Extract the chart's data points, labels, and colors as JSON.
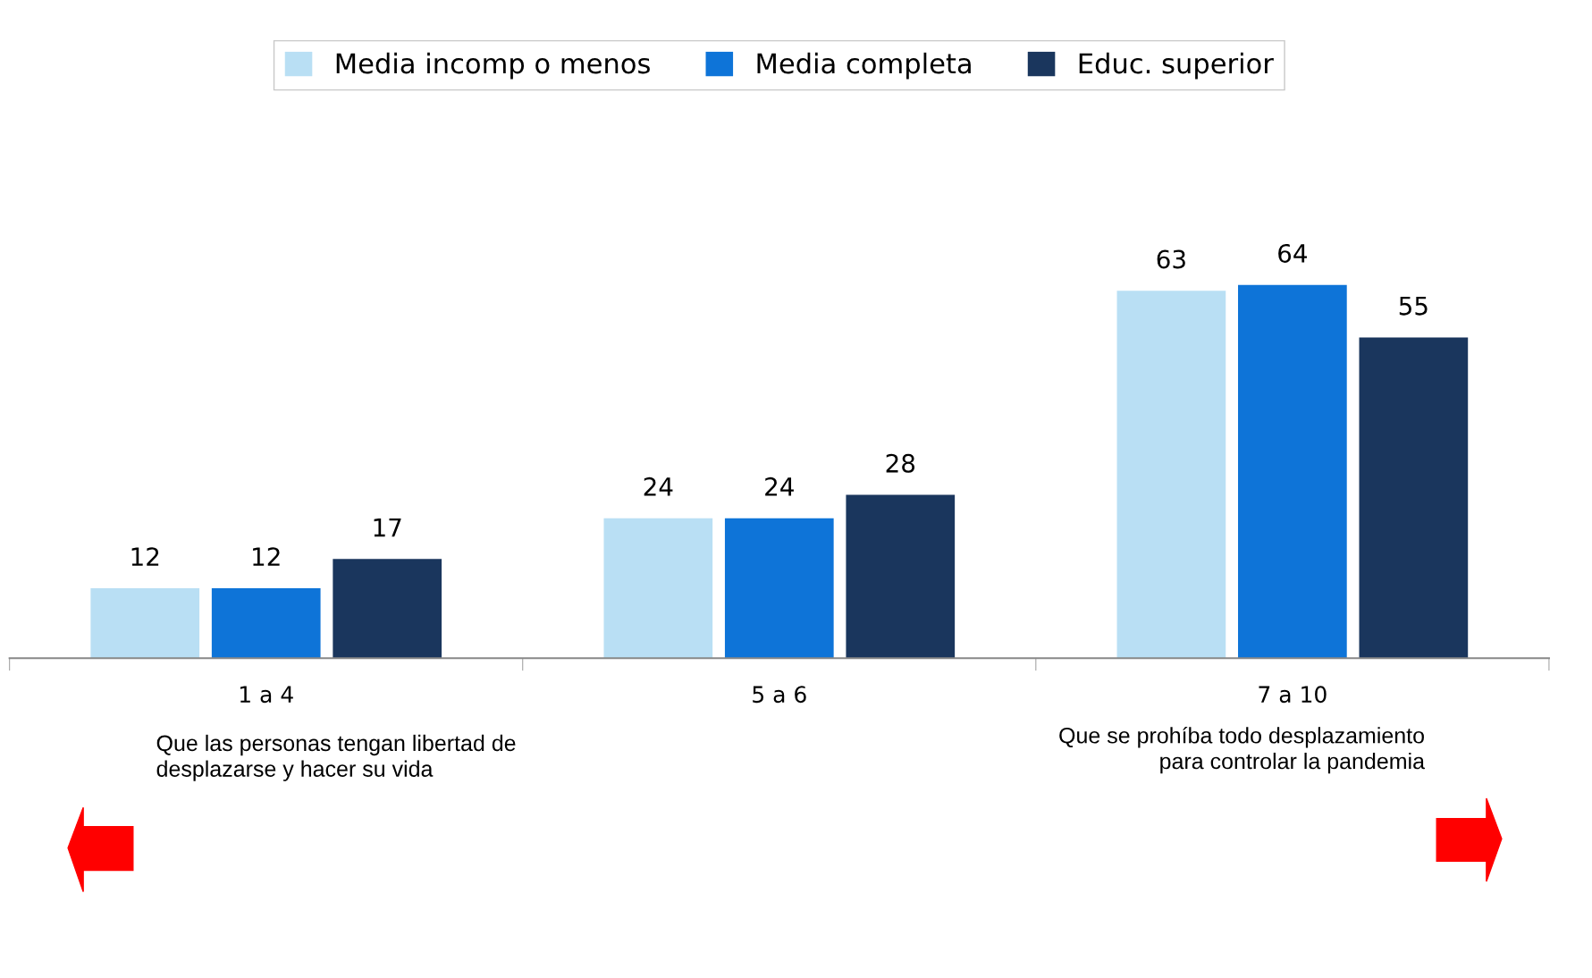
{
  "chart_data": {
    "type": "bar",
    "categories": [
      "1 a 4",
      "5 a 6",
      "7 a 10"
    ],
    "series": [
      {
        "name": "Media incomp o menos",
        "color": "#b9dff4",
        "values": [
          12,
          24,
          63
        ]
      },
      {
        "name": "Media completa",
        "color": "#0e74d8",
        "values": [
          12,
          24,
          64
        ]
      },
      {
        "name": "Educ. superior",
        "color": "#1a365d",
        "values": [
          17,
          28,
          55
        ]
      }
    ],
    "data_labels": true,
    "legend": "top",
    "grid": false,
    "annotations": [
      "Que las personas tengan libertad de\ndesplazarse y hacer su vida",
      "Que se prohíba todo desplazamiento\npara controlar la pandemia"
    ]
  }
}
